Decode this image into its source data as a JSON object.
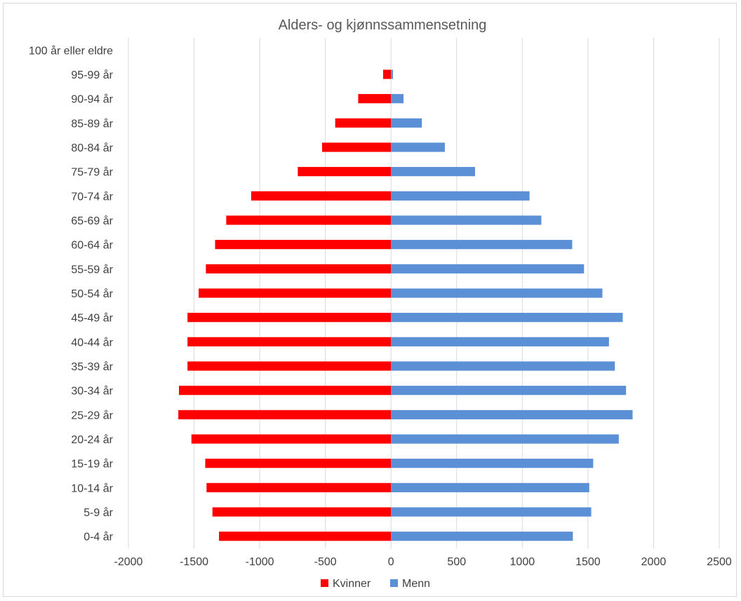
{
  "chart_data": {
    "type": "bar",
    "orientation": "horizontal",
    "title": "Alders- og kjønnssammensetning",
    "categories": [
      "0-4 år",
      "5-9 år",
      "10-14 år",
      "15-19 år",
      "20-24 år",
      "25-29 år",
      "30-34 år",
      "35-39 år",
      "40-44 år",
      "45-49 år",
      "50-54 år",
      "55-59 år",
      "60-64 år",
      "65-69 år",
      "70-74 år",
      "75-79 år",
      "80-84 år",
      "85-89 år",
      "90-94 år",
      "95-99 år",
      "100 år eller eldre"
    ],
    "series": [
      {
        "name": "Kvinner",
        "color": "#ff0000",
        "values": [
          -1310,
          -1360,
          -1405,
          -1415,
          -1520,
          -1620,
          -1615,
          -1550,
          -1550,
          -1550,
          -1465,
          -1410,
          -1340,
          -1255,
          -1065,
          -710,
          -525,
          -425,
          -250,
          -60,
          0
        ]
      },
      {
        "name": "Menn",
        "color": "#5b8fd6",
        "values": [
          1385,
          1525,
          1510,
          1540,
          1735,
          1840,
          1790,
          1705,
          1660,
          1765,
          1610,
          1470,
          1380,
          1145,
          1055,
          640,
          410,
          235,
          95,
          15,
          0
        ]
      }
    ],
    "xlim": [
      -2000,
      2500
    ],
    "xticks": [
      -2000,
      -1500,
      -1000,
      -500,
      0,
      500,
      1000,
      1500,
      2000,
      2500
    ],
    "grid": "vertical",
    "legend": "bottom"
  }
}
